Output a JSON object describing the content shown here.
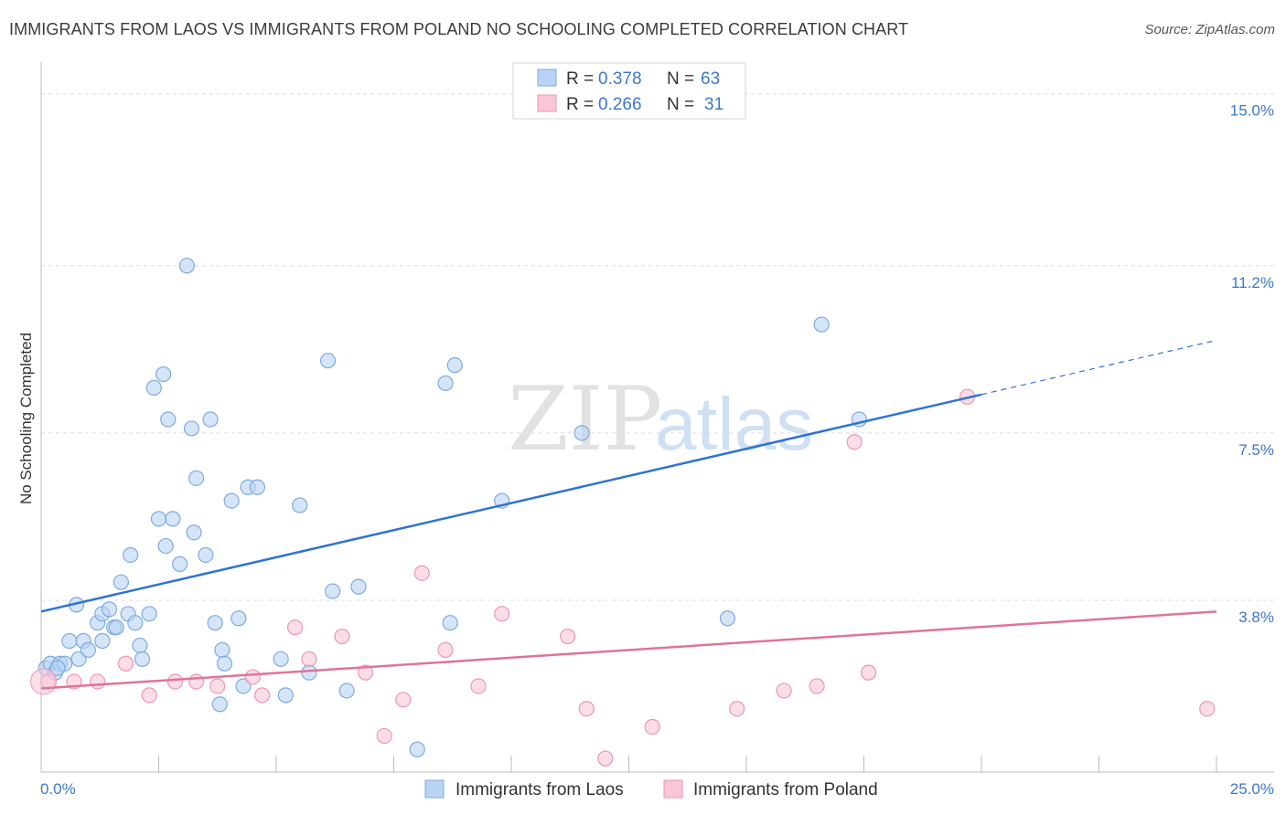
{
  "title": "IMMIGRANTS FROM LAOS VS IMMIGRANTS FROM POLAND NO SCHOOLING COMPLETED CORRELATION CHART",
  "source": "Source: ZipAtlas.com",
  "watermark": {
    "zip": "ZIP",
    "atlas": "atlas"
  },
  "colors": {
    "laos_fill": "#b9d3f3",
    "laos_stroke": "#7eaae0",
    "laos_line": "#2f74d0",
    "poland_fill": "#f8c6d6",
    "poland_stroke": "#eb97b3",
    "poland_line": "#e0739a",
    "tick_text": "#3d78c8",
    "grid": "#dddddd"
  },
  "legend": {
    "rows": [
      {
        "r_label": "R =",
        "r_value": "0.378",
        "n_label": "N =",
        "n_value": "63"
      },
      {
        "r_label": "R =",
        "r_value": "0.266",
        "n_label": "N =",
        "n_value": "31"
      }
    ]
  },
  "chart_data": {
    "type": "scatter",
    "title": "IMMIGRANTS FROM LAOS VS IMMIGRANTS FROM POLAND NO SCHOOLING COMPLETED CORRELATION CHART",
    "xlabel": "",
    "ylabel": "No Schooling Completed",
    "xlim": [
      0,
      25
    ],
    "ylim": [
      0,
      15.5
    ],
    "x_tick_labels": [
      "0.0%",
      "25.0%"
    ],
    "y_ticks": [
      3.8,
      7.5,
      11.2,
      15.0
    ],
    "y_tick_labels": [
      "3.8%",
      "7.5%",
      "11.2%",
      "15.0%"
    ],
    "series": [
      {
        "name": "Immigrants from Laos",
        "r": 0.378,
        "n": 63,
        "trend": {
          "x0": 0,
          "y0": 3.55,
          "x1": 20,
          "y1": 8.35,
          "dash_x1": 25,
          "dash_y1": 9.55
        },
        "points": [
          [
            0.1,
            2.3
          ],
          [
            0.2,
            2.4
          ],
          [
            0.3,
            2.2
          ],
          [
            0.4,
            2.4
          ],
          [
            0.5,
            2.4
          ],
          [
            0.6,
            2.9
          ],
          [
            0.75,
            3.7
          ],
          [
            0.8,
            2.5
          ],
          [
            0.9,
            2.9
          ],
          [
            1.0,
            2.7
          ],
          [
            1.2,
            3.3
          ],
          [
            1.3,
            3.5
          ],
          [
            1.3,
            2.9
          ],
          [
            1.45,
            3.6
          ],
          [
            1.55,
            3.2
          ],
          [
            1.6,
            3.2
          ],
          [
            1.7,
            4.2
          ],
          [
            1.85,
            3.5
          ],
          [
            1.9,
            4.8
          ],
          [
            2.0,
            3.3
          ],
          [
            2.1,
            2.8
          ],
          [
            2.15,
            2.5
          ],
          [
            2.3,
            3.5
          ],
          [
            2.4,
            8.5
          ],
          [
            2.5,
            5.6
          ],
          [
            2.6,
            8.8
          ],
          [
            2.65,
            5.0
          ],
          [
            2.7,
            7.8
          ],
          [
            2.8,
            5.6
          ],
          [
            2.95,
            4.6
          ],
          [
            3.1,
            11.2
          ],
          [
            3.2,
            7.6
          ],
          [
            3.25,
            5.3
          ],
          [
            3.3,
            6.5
          ],
          [
            3.5,
            4.8
          ],
          [
            3.6,
            7.8
          ],
          [
            3.7,
            3.3
          ],
          [
            3.8,
            1.5
          ],
          [
            3.85,
            2.7
          ],
          [
            3.9,
            2.4
          ],
          [
            4.05,
            6.0
          ],
          [
            4.2,
            3.4
          ],
          [
            4.3,
            1.9
          ],
          [
            4.4,
            6.3
          ],
          [
            4.6,
            6.3
          ],
          [
            5.1,
            2.5
          ],
          [
            5.2,
            1.7
          ],
          [
            5.5,
            5.9
          ],
          [
            5.7,
            2.2
          ],
          [
            6.1,
            9.1
          ],
          [
            6.2,
            4.0
          ],
          [
            6.5,
            1.8
          ],
          [
            6.75,
            4.1
          ],
          [
            8.0,
            0.5
          ],
          [
            8.6,
            8.6
          ],
          [
            8.7,
            3.3
          ],
          [
            8.8,
            9.0
          ],
          [
            9.8,
            6.0
          ],
          [
            11.5,
            7.5
          ],
          [
            14.6,
            3.4
          ],
          [
            16.6,
            9.9
          ],
          [
            17.4,
            7.8
          ],
          [
            0.35,
            2.3
          ]
        ]
      },
      {
        "name": "Immigrants from Poland",
        "r": 0.266,
        "n": 31,
        "trend": {
          "x0": 0,
          "y0": 1.85,
          "x1": 25,
          "y1": 3.55
        },
        "points": [
          [
            0.15,
            2.0
          ],
          [
            0.7,
            2.0
          ],
          [
            1.2,
            2.0
          ],
          [
            1.8,
            2.4
          ],
          [
            2.3,
            1.7
          ],
          [
            2.85,
            2.0
          ],
          [
            3.3,
            2.0
          ],
          [
            3.75,
            1.9
          ],
          [
            4.5,
            2.1
          ],
          [
            4.7,
            1.7
          ],
          [
            5.4,
            3.2
          ],
          [
            5.7,
            2.5
          ],
          [
            6.4,
            3.0
          ],
          [
            6.9,
            2.2
          ],
          [
            7.3,
            0.8
          ],
          [
            7.7,
            1.6
          ],
          [
            8.1,
            4.4
          ],
          [
            8.6,
            2.7
          ],
          [
            9.3,
            1.9
          ],
          [
            9.8,
            3.5
          ],
          [
            11.2,
            3.0
          ],
          [
            11.6,
            1.4
          ],
          [
            12.0,
            0.3
          ],
          [
            13.0,
            1.0
          ],
          [
            14.8,
            1.4
          ],
          [
            15.8,
            1.8
          ],
          [
            16.5,
            1.9
          ],
          [
            17.3,
            7.3
          ],
          [
            17.6,
            2.2
          ],
          [
            19.7,
            8.3
          ],
          [
            24.8,
            1.4
          ]
        ]
      }
    ]
  },
  "bottom_legend": [
    "Immigrants from Laos",
    "Immigrants from Poland"
  ]
}
